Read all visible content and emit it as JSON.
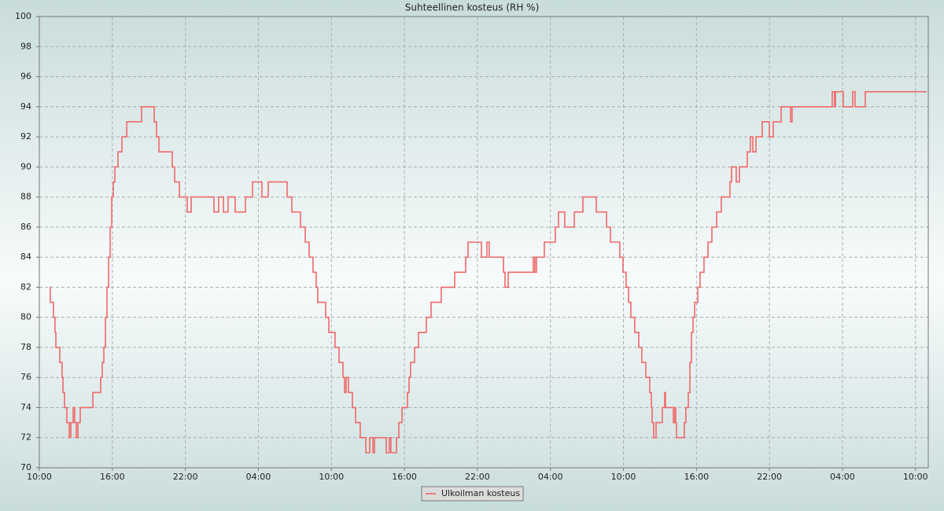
{
  "chart_data": {
    "type": "line",
    "title": "Suhteellinen kosteus (RH %)",
    "grid": true,
    "legend": "bottom",
    "xlim": [
      0,
      73.05
    ],
    "xticks": [
      {
        "value": 0,
        "label": "10:00"
      },
      {
        "value": 6,
        "label": "16:00"
      },
      {
        "value": 12,
        "label": "22:00"
      },
      {
        "value": 18,
        "label": "04:00"
      },
      {
        "value": 24,
        "label": "10:00"
      },
      {
        "value": 30,
        "label": "16:00"
      },
      {
        "value": 36,
        "label": "22:00"
      },
      {
        "value": 42,
        "label": "04:00"
      },
      {
        "value": 48,
        "label": "10:00"
      },
      {
        "value": 54,
        "label": "16:00"
      },
      {
        "value": 60,
        "label": "22:00"
      },
      {
        "value": 66,
        "label": "04:00"
      },
      {
        "value": 72,
        "label": "10:00"
      }
    ],
    "ylim": [
      70,
      100
    ],
    "yticks": [
      70,
      72,
      74,
      76,
      78,
      80,
      82,
      84,
      86,
      88,
      90,
      92,
      94,
      96,
      98,
      100
    ],
    "x": [
      0.84,
      0.9,
      1.16,
      1.29,
      1.36,
      1.68,
      1.87,
      1.94,
      2.07,
      2.26,
      2.46,
      2.59,
      2.78,
      2.91,
      3.04,
      3.17,
      3.36,
      4.4,
      5.04,
      5.17,
      5.3,
      5.43,
      5.56,
      5.69,
      5.82,
      5.95,
      6.08,
      6.21,
      6.46,
      6.79,
      7.18,
      8.4,
      9.44,
      9.63,
      9.83,
      10.92,
      11.12,
      11.51,
      12.15,
      12.48,
      14.35,
      14.74,
      15.13,
      15.51,
      16.09,
      16.94,
      17.52,
      18.29,
      18.81,
      20.36,
      20.75,
      21.46,
      21.85,
      22.17,
      22.49,
      22.75,
      22.88,
      23.53,
      23.79,
      24.3,
      24.63,
      24.95,
      25.08,
      25.21,
      25.4,
      25.73,
      25.99,
      26.37,
      26.83,
      27.15,
      27.41,
      27.54,
      28.51,
      28.76,
      28.89,
      29.35,
      29.54,
      29.8,
      30.25,
      30.38,
      30.51,
      30.83,
      31.16,
      31.8,
      32.19,
      33.03,
      34.13,
      35.03,
      35.23,
      36.33,
      36.78,
      36.97,
      38.14,
      38.27,
      38.53,
      40.59,
      40.72,
      40.85,
      41.5,
      42.4,
      42.66,
      43.18,
      43.96,
      44.67,
      45.77,
      46.61,
      46.93,
      47.7,
      47.96,
      48.22,
      48.42,
      48.61,
      48.93,
      49.26,
      49.51,
      49.84,
      50.16,
      50.29,
      50.36,
      50.48,
      50.68,
      51.19,
      51.39,
      51.45,
      52.1,
      52.23,
      52.29,
      52.36,
      53.0,
      53.13,
      53.33,
      53.46,
      53.59,
      53.72,
      53.85,
      54.11,
      54.3,
      54.62,
      54.95,
      55.27,
      55.66,
      56.04,
      56.75,
      56.88,
      57.27,
      57.53,
      58.17,
      58.43,
      58.63,
      58.89,
      59.4,
      59.99,
      60.31,
      60.96,
      61.73,
      61.86,
      65.16,
      65.35,
      65.42,
      66.06,
      66.84,
      67.03,
      67.87,
      72.91
    ],
    "series": [
      {
        "name": "Ulkoilman kosteus",
        "color": "#f06868",
        "values": [
          82,
          81,
          80,
          79,
          78,
          77,
          76,
          75,
          74,
          73,
          72,
          73,
          74,
          73,
          72,
          73,
          74,
          75,
          76,
          77,
          78,
          80,
          82,
          84,
          86,
          88,
          89,
          90,
          91,
          92,
          93,
          94,
          93,
          92,
          91,
          90,
          89,
          88,
          87,
          88,
          87,
          88,
          87,
          88,
          87,
          88,
          89,
          88,
          89,
          88,
          87,
          86,
          85,
          84,
          83,
          82,
          81,
          80,
          79,
          78,
          77,
          76,
          75,
          76,
          75,
          74,
          73,
          72,
          71,
          72,
          71,
          72,
          71,
          72,
          71,
          72,
          73,
          74,
          75,
          76,
          77,
          78,
          79,
          80,
          81,
          82,
          83,
          84,
          85,
          84,
          85,
          84,
          83,
          82,
          83,
          84,
          83,
          84,
          85,
          86,
          87,
          86,
          87,
          88,
          87,
          86,
          85,
          84,
          83,
          82,
          81,
          80,
          79,
          78,
          77,
          76,
          75,
          74,
          73,
          72,
          73,
          74,
          75,
          74,
          73,
          74,
          73,
          72,
          73,
          74,
          75,
          77,
          79,
          80,
          81,
          82,
          83,
          84,
          85,
          86,
          87,
          88,
          89,
          90,
          89,
          90,
          91,
          92,
          91,
          92,
          93,
          92,
          93,
          94,
          93,
          94,
          95,
          94,
          95,
          94,
          95,
          94,
          95,
          95
        ]
      }
    ]
  }
}
